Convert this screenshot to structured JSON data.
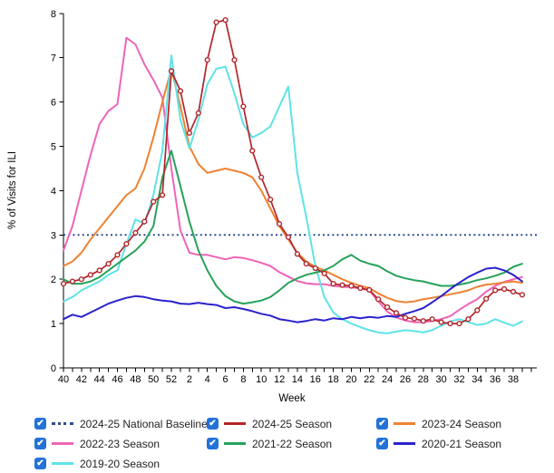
{
  "chart_data": {
    "type": "line",
    "title": "",
    "xlabel": "Week",
    "ylabel": "% of Visits for ILI",
    "ylim": [
      0,
      8
    ],
    "y_ticks": [
      0,
      1,
      2,
      3,
      4,
      5,
      6,
      7,
      8
    ],
    "grid": false,
    "legend_position": "bottom",
    "weeks": [
      "40",
      "41",
      "42",
      "43",
      "44",
      "45",
      "46",
      "47",
      "48",
      "49",
      "50",
      "51",
      "52",
      "1",
      "2",
      "3",
      "4",
      "5",
      "6",
      "7",
      "8",
      "9",
      "10",
      "11",
      "12",
      "13",
      "14",
      "15",
      "16",
      "17",
      "18",
      "19",
      "20",
      "21",
      "22",
      "23",
      "24",
      "25",
      "26",
      "27",
      "28",
      "29",
      "30",
      "31",
      "32",
      "33",
      "34",
      "35",
      "36",
      "37",
      "38",
      "39"
    ],
    "x_tick_labels_shown": [
      "40",
      "42",
      "44",
      "46",
      "48",
      "50",
      "52",
      "2",
      "4",
      "6",
      "8",
      "10",
      "12",
      "14",
      "16",
      "18",
      "20",
      "22",
      "24",
      "26",
      "28",
      "30",
      "32",
      "34",
      "36",
      "38"
    ],
    "baseline": {
      "label": "2024-25 National Baseline",
      "value": 3.0,
      "color": "#2e4d8f",
      "style": "dotted"
    },
    "series": [
      {
        "name": "2022-23 Season",
        "color": "#ee64b6",
        "marker": false,
        "values": [
          2.65,
          3.2,
          4.0,
          4.8,
          5.5,
          5.8,
          5.95,
          7.45,
          7.3,
          6.85,
          6.5,
          6.1,
          4.5,
          3.1,
          2.6,
          2.55,
          2.55,
          2.5,
          2.45,
          2.5,
          2.48,
          2.43,
          2.37,
          2.3,
          2.16,
          2.06,
          1.96,
          1.91,
          1.89,
          1.89,
          1.85,
          1.83,
          1.82,
          1.79,
          1.75,
          1.5,
          1.27,
          1.14,
          1.07,
          1.03,
          1.03,
          1.06,
          1.1,
          1.17,
          1.31,
          1.44,
          1.55,
          1.72,
          1.85,
          1.94,
          2.0,
          2.05
        ]
      },
      {
        "name": "2023-24 Season",
        "color": "#ee8233",
        "marker": false,
        "values": [
          2.3,
          2.4,
          2.6,
          2.9,
          3.15,
          3.4,
          3.65,
          3.9,
          4.05,
          4.5,
          5.2,
          6.0,
          6.75,
          5.9,
          5.0,
          4.6,
          4.4,
          4.45,
          4.5,
          4.45,
          4.4,
          4.3,
          4.0,
          3.6,
          3.2,
          2.9,
          2.6,
          2.4,
          2.28,
          2.2,
          2.1,
          2.0,
          1.92,
          1.85,
          1.8,
          1.68,
          1.58,
          1.51,
          1.48,
          1.5,
          1.55,
          1.58,
          1.62,
          1.66,
          1.7,
          1.75,
          1.83,
          1.88,
          1.9,
          1.93,
          1.95,
          1.92
        ]
      },
      {
        "name": "2019-20 Season",
        "color": "#5fe3e6",
        "marker": false,
        "values": [
          1.5,
          1.6,
          1.75,
          1.85,
          1.95,
          2.1,
          2.2,
          2.8,
          3.35,
          3.25,
          3.9,
          4.9,
          7.05,
          5.6,
          4.95,
          5.6,
          6.4,
          6.75,
          6.8,
          6.2,
          5.5,
          5.2,
          5.3,
          5.45,
          5.9,
          6.35,
          4.4,
          3.4,
          2.3,
          1.6,
          1.25,
          1.1,
          1.0,
          0.92,
          0.85,
          0.8,
          0.78,
          0.82,
          0.85,
          0.83,
          0.8,
          0.85,
          0.95,
          1.05,
          1.1,
          1.03,
          0.97,
          1.0,
          1.1,
          1.02,
          0.95,
          1.05
        ]
      },
      {
        "name": "2021-22 Season",
        "color": "#27a25a",
        "marker": false,
        "values": [
          2.0,
          1.9,
          1.9,
          1.95,
          2.05,
          2.2,
          2.35,
          2.5,
          2.65,
          2.85,
          3.2,
          4.3,
          4.9,
          4.1,
          3.3,
          2.65,
          2.2,
          1.85,
          1.62,
          1.5,
          1.45,
          1.48,
          1.52,
          1.6,
          1.75,
          1.92,
          2.02,
          2.1,
          2.15,
          2.2,
          2.3,
          2.45,
          2.55,
          2.42,
          2.35,
          2.3,
          2.18,
          2.08,
          2.02,
          1.98,
          1.95,
          1.9,
          1.85,
          1.85,
          1.88,
          1.92,
          1.98,
          2.02,
          2.08,
          2.15,
          2.28,
          2.35
        ]
      },
      {
        "name": "2020-21 Season",
        "color": "#2b22cc",
        "marker": false,
        "values": [
          1.1,
          1.2,
          1.15,
          1.25,
          1.35,
          1.45,
          1.52,
          1.58,
          1.62,
          1.6,
          1.55,
          1.52,
          1.5,
          1.45,
          1.44,
          1.47,
          1.44,
          1.42,
          1.35,
          1.37,
          1.33,
          1.28,
          1.22,
          1.18,
          1.1,
          1.07,
          1.03,
          1.06,
          1.1,
          1.07,
          1.12,
          1.1,
          1.15,
          1.12,
          1.15,
          1.13,
          1.17,
          1.15,
          1.22,
          1.28,
          1.35,
          1.48,
          1.62,
          1.78,
          1.92,
          2.05,
          2.15,
          2.24,
          2.26,
          2.2,
          2.1,
          1.95
        ]
      },
      {
        "name": "2024-25 Season",
        "color": "#b2252b",
        "marker": true,
        "values": [
          1.9,
          1.95,
          2.0,
          2.1,
          2.2,
          2.35,
          2.55,
          2.8,
          3.05,
          3.3,
          3.75,
          3.9,
          6.7,
          6.25,
          5.3,
          5.75,
          6.95,
          7.8,
          7.85,
          6.95,
          5.9,
          4.9,
          4.3,
          3.8,
          3.25,
          2.95,
          2.57,
          2.35,
          2.25,
          2.13,
          1.9,
          1.87,
          1.85,
          1.8,
          1.76,
          1.55,
          1.37,
          1.24,
          1.13,
          1.11,
          1.06,
          1.1,
          1.03,
          1.0,
          1.0,
          1.1,
          1.3,
          1.56,
          1.75,
          1.78,
          1.72,
          1.65
        ]
      }
    ]
  },
  "legend": {
    "checkbox_color": "#2272d8",
    "checkmark": "✔",
    "items": [
      {
        "label": "2024-25 National Baseline",
        "color": "#2e4d8f",
        "style": "dotted",
        "checked": true
      },
      {
        "label": "2024-25 Season",
        "color": "#b2252b",
        "style": "solid",
        "checked": true
      },
      {
        "label": "2023-24 Season",
        "color": "#ee8233",
        "style": "solid",
        "checked": true
      },
      {
        "label": "2022-23 Season",
        "color": "#ee64b6",
        "style": "solid",
        "checked": true
      },
      {
        "label": "2021-22 Season",
        "color": "#27a25a",
        "style": "solid",
        "checked": true
      },
      {
        "label": "2020-21 Season",
        "color": "#2b22cc",
        "style": "solid",
        "checked": true
      },
      {
        "label": "2019-20 Season",
        "color": "#5fe3e6",
        "style": "solid",
        "checked": true
      }
    ]
  }
}
